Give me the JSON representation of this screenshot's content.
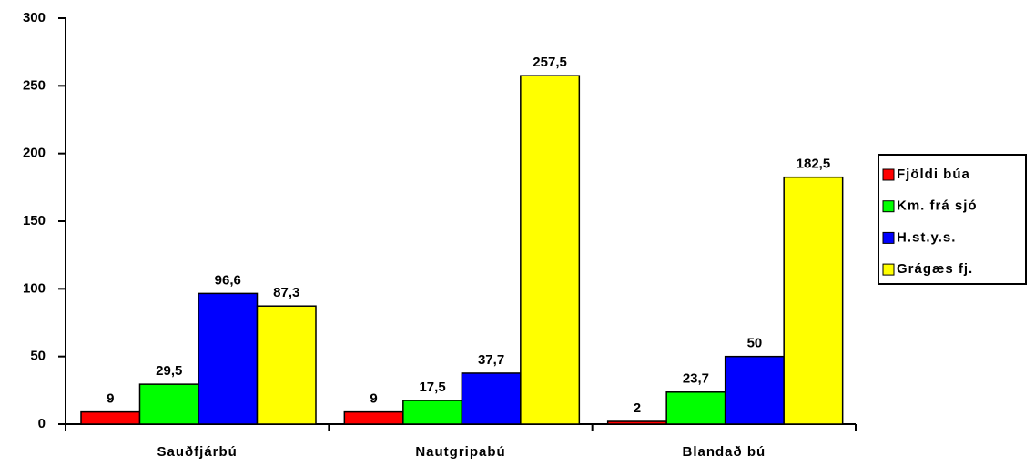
{
  "chart_data": {
    "type": "bar",
    "categories": [
      "Sauðfjárbú",
      "Nautgripabú",
      "Blandað bú"
    ],
    "series": [
      {
        "name": "Fjöldi búa",
        "color": "#ff0000",
        "values": [
          9,
          9,
          2
        ],
        "value_labels": [
          "9",
          "9",
          "2"
        ]
      },
      {
        "name": "Km. frá sjó",
        "color": "#00ff00",
        "values": [
          29.5,
          17.5,
          23.7
        ],
        "value_labels": [
          "29,5",
          "17,5",
          "23,7"
        ]
      },
      {
        "name": "H.st.y.s.",
        "color": "#0000ff",
        "values": [
          96.6,
          37.7,
          50
        ],
        "value_labels": [
          "96,6",
          "37,7",
          "50"
        ]
      },
      {
        "name": "Grágæs fj.",
        "color": "#ffff00",
        "values": [
          87.3,
          257.5,
          182.5
        ],
        "value_labels": [
          "87,3",
          "257,5",
          "182,5"
        ]
      }
    ],
    "ylim": [
      0,
      300
    ],
    "yticks": [
      0,
      50,
      100,
      150,
      200,
      250,
      300
    ],
    "legend": "right"
  }
}
